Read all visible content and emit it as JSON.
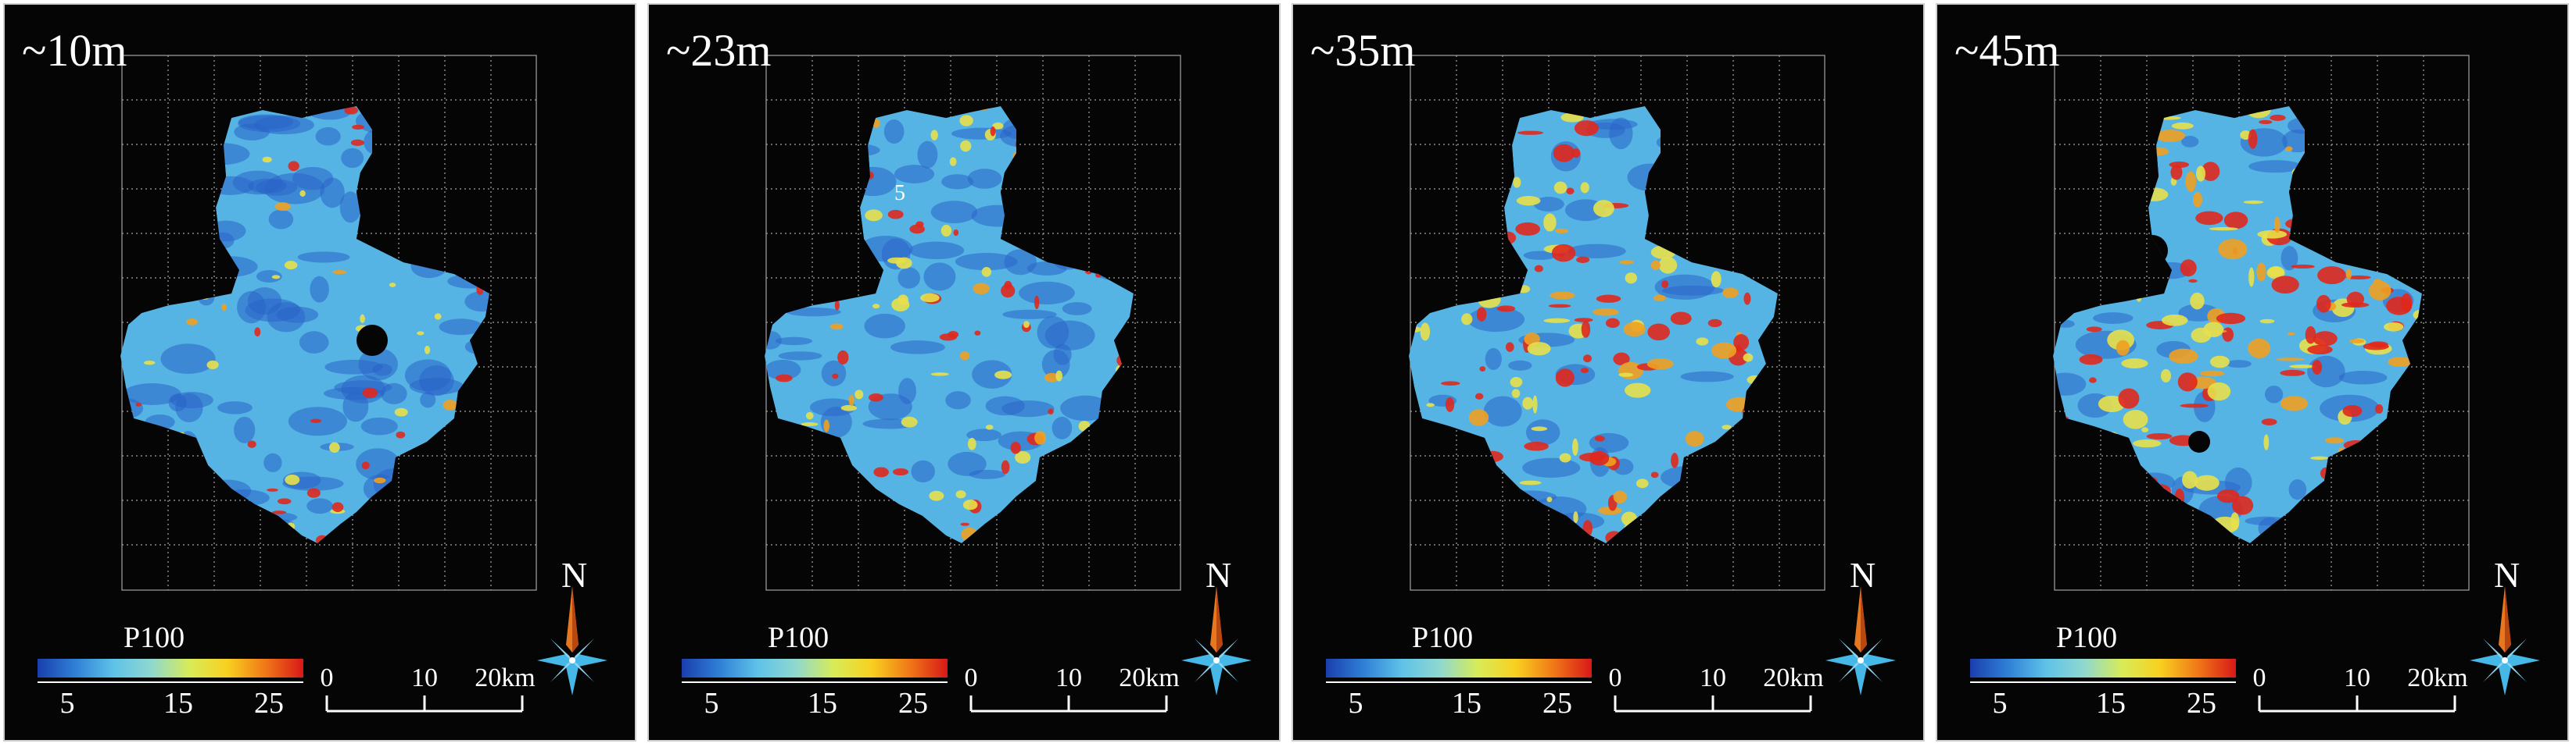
{
  "figure": {
    "panels": [
      {
        "depth_label": "~10m",
        "annotation": ""
      },
      {
        "depth_label": "~23m",
        "annotation": "5"
      },
      {
        "depth_label": "~35m",
        "annotation": ""
      },
      {
        "depth_label": "~45m",
        "annotation": ""
      }
    ],
    "colorbar": {
      "title": "P100",
      "ticks": [
        "5",
        "15",
        "25"
      ],
      "colors": [
        "#1a3fae",
        "#2f80d6",
        "#5fc2e8",
        "#8fd8d0",
        "#d8ec58",
        "#f8d020",
        "#f07818",
        "#d81818"
      ]
    },
    "scalebar": {
      "ticks": [
        "0",
        "10",
        "20km"
      ]
    },
    "north_label": "N",
    "palette": {
      "background": "#050505",
      "base_blue": "#56b4e4",
      "deep_blue": "#2a64c8",
      "yellow": "#e8e04a",
      "red": "#e0281c",
      "compass_blue": "#46b8e8",
      "compass_orange": "#e87820"
    }
  }
}
